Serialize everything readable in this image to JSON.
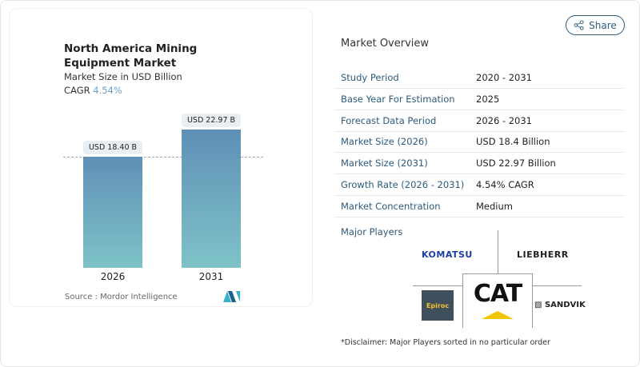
{
  "chart_data": {
    "type": "bar",
    "title": "North America Mining Equipment Market",
    "subtitle": "Market Size in USD Billion",
    "cagr_label": "CAGR",
    "cagr_value": "4.54%",
    "categories": [
      "2026",
      "2031"
    ],
    "values": [
      18.4,
      22.97
    ],
    "data_labels": [
      "USD 18.40 B",
      "USD 22.97 B"
    ],
    "bar_gradient": [
      "#5f8fb6",
      "#7ec3c8"
    ],
    "source": "Source :  Mordor Intelligence"
  },
  "share_label": "Share",
  "overview": {
    "title": "Market Overview",
    "rows": [
      {
        "label": "Study Period",
        "value": "2020 - 2031"
      },
      {
        "label": "Base Year For Estimation",
        "value": "2025"
      },
      {
        "label": "Forecast Data Period",
        "value": "2026 - 2031"
      },
      {
        "label": "Market Size (2026)",
        "value": "USD 18.4 Billion"
      },
      {
        "label": "Market Size (2031)",
        "value": "USD 22.97 Billion"
      },
      {
        "label": "Growth Rate (2026 - 2031)",
        "value": "4.54% CAGR"
      },
      {
        "label": "Market Concentration",
        "value": "Medium"
      }
    ],
    "major_players_label": "Major Players",
    "players": [
      "KOMATSU",
      "LIEBHERR",
      "Epiroc",
      "CAT",
      "SANDVIK"
    ],
    "disclaimer": "*Disclaimer: Major Players sorted in no particular order"
  }
}
